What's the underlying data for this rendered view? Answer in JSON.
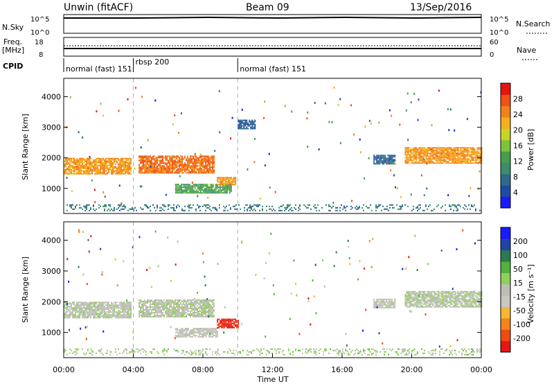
{
  "header": {
    "station": "Unwin (fitACF)",
    "beam": "Beam 09",
    "date": "13/Sep/2016"
  },
  "top_panels": {
    "nsky_label": "N.Sky",
    "nsky_ticks": [
      "10^5",
      "10^0"
    ],
    "nsearch_label": "N.Search",
    "nsearch_ticks": [
      "10^5",
      "10^0"
    ],
    "freq_label": "Freq.",
    "freq_unit": "[MHz]",
    "freq_ticks": [
      "18",
      "8"
    ],
    "nave_label": "Nave",
    "nave_ticks": [
      "60",
      "0"
    ],
    "cpid_label": "CPID",
    "cpid_segments": [
      {
        "label": "normal (fast) 151",
        "start_h": 0,
        "end_h": 4
      },
      {
        "label": "rbsp 200",
        "start_h": 4,
        "end_h": 10
      },
      {
        "label": "normal (fast) 151",
        "start_h": 10,
        "end_h": 24
      }
    ]
  },
  "colors": {
    "power_scale": [
      "#1a1aff",
      "#1f4aa8",
      "#2e6a8a",
      "#3d8c6e",
      "#46a04b",
      "#7fc33a",
      "#c9d424",
      "#f2b01c",
      "#f4801a",
      "#f25014",
      "#e8140f"
    ],
    "velocity_scale": [
      "#e8140f",
      "#f04a12",
      "#f5821a",
      "#f6b830",
      "#c8c8c0",
      "#bdbdb5",
      "#8fcf5a",
      "#4fb23c",
      "#2d7a52",
      "#1f44a8",
      "#1a1aff"
    ],
    "panel_border": "#000000"
  },
  "chart_data": [
    {
      "type": "heatmap",
      "name": "power-panel",
      "xlabel": "",
      "ylabel": "Slant Range [km]",
      "xlim": [
        0,
        24
      ],
      "ylim": [
        180,
        4600
      ],
      "yticks": [
        "4000",
        "3000",
        "2000",
        "1000"
      ],
      "colorbar": {
        "label": "Power [dB]",
        "ticks": [
          "28",
          "24",
          "20",
          "16",
          "12",
          "8",
          "4"
        ],
        "range": [
          0,
          30
        ]
      },
      "regions": [
        {
          "x_start": 0.0,
          "x_end": 3.9,
          "y_center": 1750,
          "y_width": 500,
          "value": 22
        },
        {
          "x_start": 4.3,
          "x_end": 8.6,
          "y_center": 1800,
          "y_width": 550,
          "value": 24
        },
        {
          "x_start": 6.4,
          "x_end": 9.6,
          "y_center": 1000,
          "y_width": 300,
          "value": 12
        },
        {
          "x_start": 8.8,
          "x_end": 9.9,
          "y_center": 1250,
          "y_width": 250,
          "value": 22
        },
        {
          "x_start": 17.8,
          "x_end": 19.0,
          "y_center": 1950,
          "y_width": 300,
          "value": 6
        },
        {
          "x_start": 19.6,
          "x_end": 24.0,
          "y_center": 2100,
          "y_width": 500,
          "value": 22
        },
        {
          "x_start": 10.0,
          "x_end": 11.0,
          "y_center": 3100,
          "y_width": 300,
          "value": 6
        },
        {
          "x_start": 0.0,
          "x_end": 24.0,
          "y_center": 380,
          "y_width": 200,
          "value": 8
        }
      ]
    },
    {
      "type": "heatmap",
      "name": "velocity-panel",
      "xlabel": "Time UT",
      "ylabel": "Slant Range [km]",
      "xlim": [
        0,
        24
      ],
      "ylim": [
        180,
        4600
      ],
      "xticks": [
        "00:00",
        "04:00",
        "08:00",
        "12:00",
        "16:00",
        "20:00",
        "00:00"
      ],
      "yticks": [
        "4000",
        "3000",
        "2000",
        "1000"
      ],
      "colorbar": {
        "label": "Velocity [m s⁻¹]",
        "ticks": [
          "200",
          "100",
          "50",
          "15",
          "-15",
          "-50",
          "-100",
          "-200"
        ],
        "range": [
          -250,
          250
        ]
      },
      "regions": [
        {
          "x_start": 0.0,
          "x_end": 3.9,
          "y_center": 1750,
          "y_width": 500,
          "value": 0
        },
        {
          "x_start": 4.3,
          "x_end": 8.6,
          "y_center": 1800,
          "y_width": 550,
          "value": 0
        },
        {
          "x_start": 6.4,
          "x_end": 8.8,
          "y_center": 1000,
          "y_width": 300,
          "value": -20
        },
        {
          "x_start": 8.8,
          "x_end": 10.0,
          "y_center": 1300,
          "y_width": 300,
          "value": -220
        },
        {
          "x_start": 19.6,
          "x_end": 24.0,
          "y_center": 2100,
          "y_width": 500,
          "value": 5
        },
        {
          "x_start": 17.8,
          "x_end": 19.0,
          "y_center": 1950,
          "y_width": 300,
          "value": -10
        },
        {
          "x_start": 0.0,
          "x_end": 24.0,
          "y_center": 380,
          "y_width": 200,
          "value": 30
        }
      ]
    }
  ]
}
